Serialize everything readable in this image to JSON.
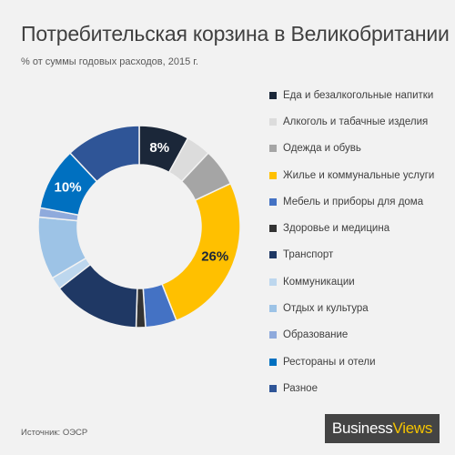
{
  "title": "Потребительская корзина в Великобритании",
  "subtitle": "% от суммы годовых расходов, 2015 г.",
  "source": "Источник: ОЭСР",
  "logo": {
    "word1": "Business",
    "word2": "Views"
  },
  "chart_data": {
    "type": "pie",
    "subtype": "donut",
    "legend_position": "right",
    "slices": [
      {
        "name": "Еда и безалкогольные напитки",
        "value": 8,
        "color": "#1b2739",
        "label": "8%"
      },
      {
        "name": "Алкоголь и табачные изделия",
        "value": 4,
        "color": "#dcdcdc"
      },
      {
        "name": "Одежда и обувь",
        "value": 6,
        "color": "#a5a5a5"
      },
      {
        "name": "Жилье и коммунальные услуги",
        "value": 26,
        "color": "#ffc000",
        "label": "26%"
      },
      {
        "name": "Мебель и приборы для дома",
        "value": 5,
        "color": "#4472c4"
      },
      {
        "name": "Здоровье и медицина",
        "value": 1.5,
        "color": "#333333"
      },
      {
        "name": "Транспорт",
        "value": 14,
        "color": "#1f3864"
      },
      {
        "name": "Коммуникации",
        "value": 2,
        "color": "#bdd7ee"
      },
      {
        "name": "Отдых и культура",
        "value": 10,
        "color": "#9dc3e6"
      },
      {
        "name": "Образование",
        "value": 1.5,
        "color": "#8faadc"
      },
      {
        "name": "Рестораны и отели",
        "value": 10,
        "color": "#0070c0",
        "label": "10%"
      },
      {
        "name": "Разное",
        "value": 12,
        "color": "#2f5597"
      }
    ]
  }
}
